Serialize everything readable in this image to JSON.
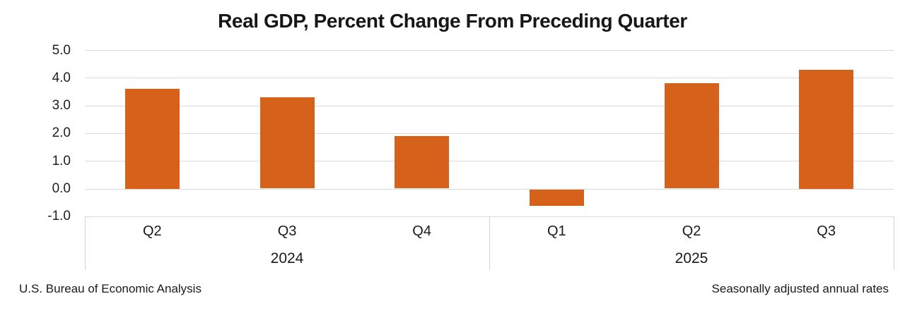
{
  "chart_data": {
    "type": "bar",
    "title": "Real GDP, Percent Change From Preceding Quarter",
    "categories": [
      "Q2",
      "Q3",
      "Q4",
      "Q1",
      "Q2",
      "Q3"
    ],
    "values": [
      3.6,
      3.3,
      1.9,
      -0.6,
      3.8,
      4.3
    ],
    "year_groups": [
      {
        "label": "2024",
        "quarters": [
          "Q2",
          "Q3",
          "Q4"
        ]
      },
      {
        "label": "2025",
        "quarters": [
          "Q1",
          "Q2",
          "Q3"
        ]
      }
    ],
    "ytick_labels": [
      "5.0",
      "4.0",
      "3.0",
      "2.0",
      "1.0",
      "0.0",
      "-1.0"
    ],
    "ylim": [
      -1.0,
      5.0
    ],
    "grid": true,
    "legend": "none",
    "bar_color": "#d6611a",
    "gridline_color": "#d9d9d9",
    "text_color": "#1a1a1a"
  },
  "footer": {
    "left": "U.S. Bureau of Economic Analysis",
    "right": "Seasonally adjusted annual rates"
  }
}
